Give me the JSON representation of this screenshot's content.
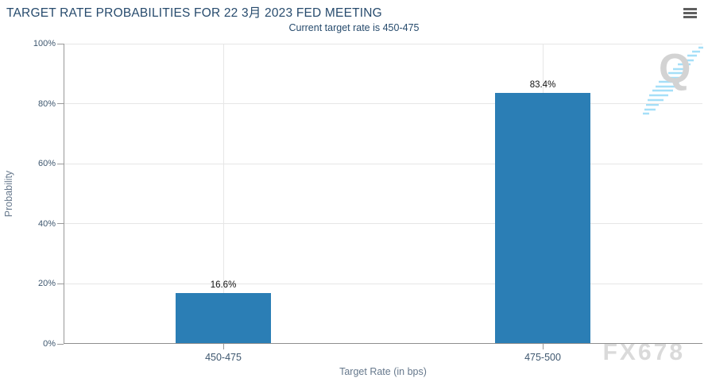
{
  "chart_data": {
    "type": "bar",
    "title": "TARGET RATE PROBABILITIES FOR 22 3月 2023 FED MEETING",
    "subtitle": "Current target rate is 450-475",
    "categories": [
      "450-475",
      "475-500"
    ],
    "values": [
      16.6,
      83.4
    ],
    "data_labels": [
      "16.6%",
      "83.4%"
    ],
    "xlabel": "Target Rate (in bps)",
    "ylabel": "Probability",
    "ylim": [
      0,
      100
    ],
    "yticks": [
      0,
      20,
      40,
      60,
      80,
      100
    ],
    "ytick_labels": [
      "0%",
      "20%",
      "40%",
      "60%",
      "80%",
      "100%"
    ],
    "grid": true,
    "legend": "none",
    "bar_color": "#2b7eb5"
  },
  "menu": {
    "icon": "hamburger-icon"
  },
  "watermarks": {
    "logo_letter": "Q",
    "brand": "FX678"
  },
  "colors": {
    "title": "#274b6d",
    "bar": "#2b7eb5",
    "grid": "#e6e6e6",
    "axis": "#999999",
    "tick_label": "#3e576f",
    "axis_title": "#66788c",
    "watermark": "#dadada",
    "logo_dash": "#a5dff8"
  }
}
